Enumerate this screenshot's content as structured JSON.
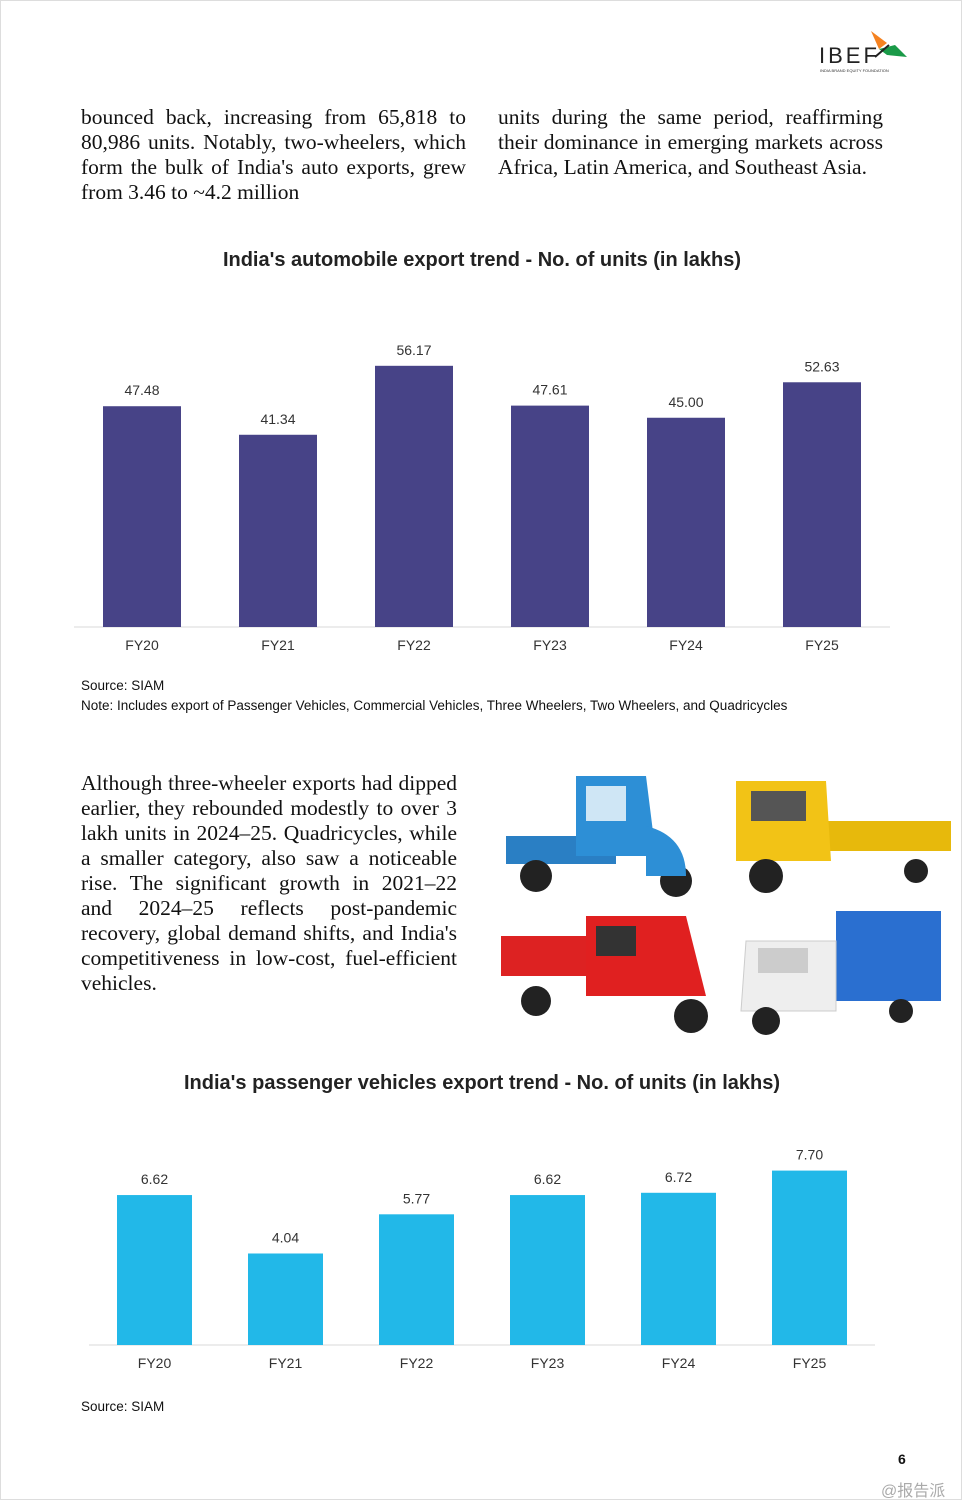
{
  "header": {
    "logo_text": "IBEF",
    "logo_tagline": "INDIA BRAND EQUITY FOUNDATION"
  },
  "intro": {
    "left": "bounced back, increasing from 65,818 to 80,986 units. Notably, two-wheelers, which form the bulk of India's auto exports, grew from 3.46 to ~4.2 million",
    "right": "units during the same period, reaffirming their dominance in emerging markets across Africa, Latin America, and Southeast Asia."
  },
  "chart_data": [
    {
      "type": "bar",
      "title": "India's automobile export trend - No. of units (in lakhs)",
      "categories": [
        "FY20",
        "FY21",
        "FY22",
        "FY23",
        "FY24",
        "FY25"
      ],
      "values": [
        47.48,
        41.34,
        56.17,
        47.61,
        45.0,
        52.63
      ],
      "labels": [
        "47.48",
        "41.34",
        "56.17",
        "47.61",
        "45.00",
        "52.63"
      ],
      "color": "#474387",
      "xlabel": "",
      "ylabel": "",
      "ylim": [
        0,
        60
      ],
      "grid": false
    },
    {
      "type": "bar",
      "title": "India's passenger vehicles export trend - No. of units (in lakhs)",
      "categories": [
        "FY20",
        "FY21",
        "FY22",
        "FY23",
        "FY24",
        "FY25"
      ],
      "values": [
        6.62,
        4.04,
        5.77,
        6.62,
        6.72,
        7.7
      ],
      "labels": [
        "6.62",
        "4.04",
        "5.77",
        "6.62",
        "6.72",
        "7.70"
      ],
      "color": "#22b8e8",
      "xlabel": "",
      "ylabel": "",
      "ylim": [
        0,
        8.3
      ],
      "grid": false
    }
  ],
  "chart1_notes": {
    "source": "Source: SIAM",
    "note": "Note: Includes export of Passenger Vehicles, Commercial Vehicles, Three Wheelers, Two Wheelers, and Quadricycles"
  },
  "mid_paragraph": "Although three-wheeler exports had dipped earlier, they rebounded modestly to over 3 lakh units in 2024–25. Quadricycles, while a smaller category, also saw a noticeable rise. The significant growth in 2021–22 and 2024–25 reflects post-pandemic recovery, global demand shifts, and India's competitiveness in low-cost, fuel-efficient vehicles.",
  "chart2_notes": {
    "source": "Source: SIAM"
  },
  "footer": {
    "page_number": "6",
    "watermark": "@报告派"
  }
}
